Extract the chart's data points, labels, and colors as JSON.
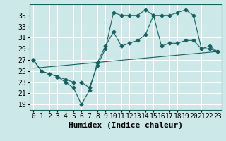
{
  "xlabel": "Humidex (Indice chaleur)",
  "bg_color": "#cce8e8",
  "grid_color": "#ffffff",
  "line_color": "#1a6060",
  "xlim": [
    -0.5,
    23.5
  ],
  "ylim": [
    18,
    37
  ],
  "yticks": [
    19,
    21,
    23,
    25,
    27,
    29,
    31,
    33,
    35
  ],
  "xticks": [
    0,
    1,
    2,
    3,
    4,
    5,
    6,
    7,
    8,
    9,
    10,
    11,
    12,
    13,
    14,
    15,
    16,
    17,
    18,
    19,
    20,
    21,
    22,
    23
  ],
  "series1_x": [
    0,
    1,
    2,
    3,
    4,
    5,
    6,
    7,
    8,
    9,
    10,
    11,
    12,
    13,
    14,
    15,
    16,
    17,
    18,
    19,
    20,
    21,
    22,
    23
  ],
  "series1_y": [
    27,
    25,
    24.5,
    24,
    23.5,
    23,
    23,
    22,
    26,
    29,
    35.5,
    35,
    35,
    35,
    36,
    35,
    35,
    35,
    35.5,
    36,
    35,
    29,
    29.5,
    28.5
  ],
  "series2_x": [
    0,
    1,
    2,
    3,
    4,
    5,
    6,
    7,
    8,
    9,
    10,
    11,
    12,
    13,
    14,
    15,
    16,
    17,
    18,
    19,
    20,
    21,
    22,
    23
  ],
  "series2_y": [
    27,
    25,
    24.5,
    24,
    23,
    22,
    19,
    21.5,
    26.5,
    29.5,
    32,
    29.5,
    30,
    30.5,
    31.5,
    35,
    29.5,
    30,
    30,
    30.5,
    30.5,
    29,
    29,
    28.5
  ],
  "series3_x": [
    0,
    23
  ],
  "series3_y": [
    25.5,
    28.5
  ],
  "tick_fontsize": 7,
  "xlabel_fontsize": 8
}
